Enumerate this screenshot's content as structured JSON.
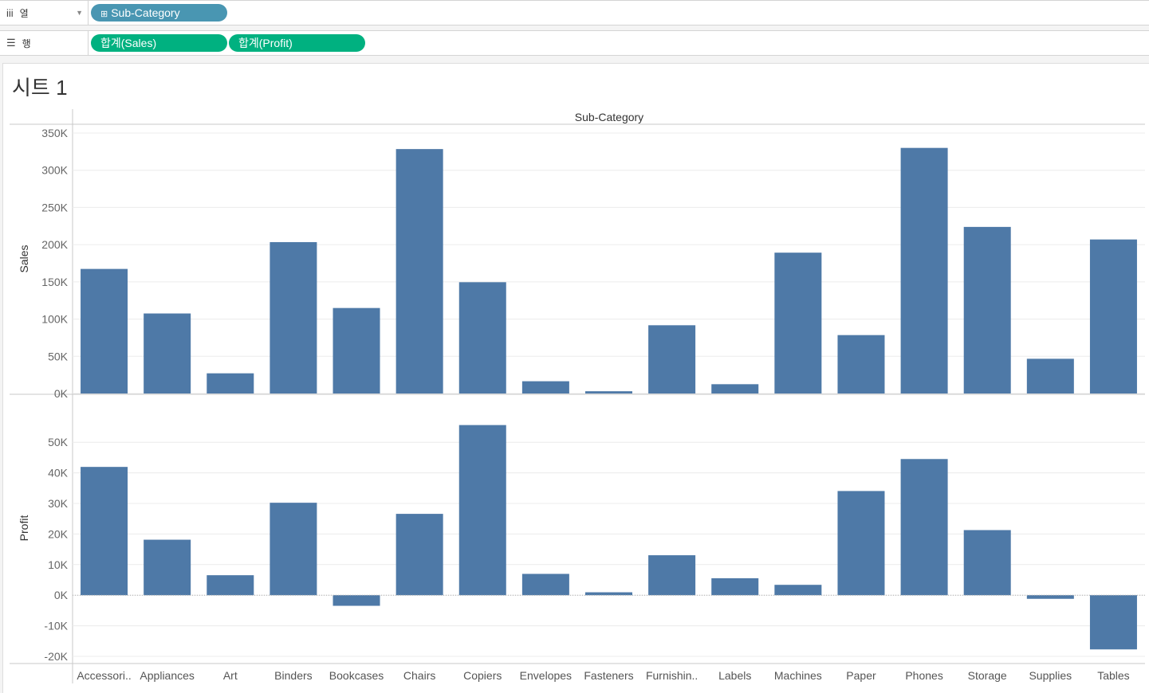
{
  "shelves": {
    "columns": {
      "icon": "columns-icon",
      "label": "열",
      "pills": [
        "Sub-Category"
      ]
    },
    "rows": {
      "icon": "rows-icon",
      "label": "행",
      "pills": [
        "합계(Sales)",
        "합계(Profit)"
      ]
    }
  },
  "sheet": {
    "title": "시트 1"
  },
  "colors": {
    "bar": "#4e79a7",
    "dimension_pill": "#4996b2",
    "measure_pill": "#00b180"
  },
  "chart_data": {
    "type": "bar",
    "title": "",
    "header": "Sub-Category",
    "categories": [
      "Accessori..",
      "Appliances",
      "Art",
      "Binders",
      "Bookcases",
      "Chairs",
      "Copiers",
      "Envelopes",
      "Fasteners",
      "Furnishin..",
      "Labels",
      "Machines",
      "Paper",
      "Phones",
      "Storage",
      "Supplies",
      "Tables"
    ],
    "panels": [
      {
        "ylabel": "Sales",
        "ylim": [
          0,
          350000
        ],
        "yticks": [
          0,
          50000,
          100000,
          150000,
          200000,
          250000,
          300000,
          350000
        ],
        "ytick_labels": [
          "0K",
          "50K",
          "100K",
          "150K",
          "200K",
          "250K",
          "300K",
          "350K"
        ],
        "values": [
          167380,
          107532,
          27119,
          203413,
          114880,
          328449,
          149528,
          16476,
          3024,
          91705,
          12486,
          189239,
          78479,
          330007,
          223844,
          46674,
          206966
        ]
      },
      {
        "ylabel": "Profit",
        "ylim": [
          -20000,
          55000
        ],
        "yticks": [
          -20000,
          -10000,
          0,
          10000,
          20000,
          30000,
          40000,
          50000
        ],
        "ytick_labels": [
          "-20K",
          "-10K",
          "0K",
          "10K",
          "20K",
          "30K",
          "40K",
          "50K"
        ],
        "values": [
          41937,
          18138,
          6528,
          30222,
          -3473,
          26590,
          55618,
          6964,
          950,
          13059,
          5546,
          3385,
          34054,
          44516,
          21279,
          -1189,
          -17725
        ]
      }
    ],
    "grid": true
  }
}
